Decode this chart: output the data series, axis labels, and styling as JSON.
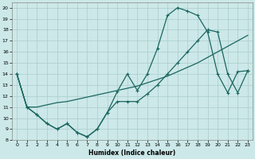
{
  "xlabel": "Humidex (Indice chaleur)",
  "background_color": "#cce8e8",
  "grid_color": "#aacccc",
  "line_color": "#1a6660",
  "xlim": [
    -0.5,
    23.5
  ],
  "ylim": [
    8,
    20.5
  ],
  "yticks": [
    8,
    9,
    10,
    11,
    12,
    13,
    14,
    15,
    16,
    17,
    18,
    19,
    20
  ],
  "xticks": [
    0,
    1,
    2,
    3,
    4,
    5,
    6,
    7,
    8,
    9,
    10,
    11,
    12,
    13,
    14,
    15,
    16,
    17,
    18,
    19,
    20,
    21,
    22,
    23
  ],
  "s1_x": [
    0,
    1,
    2,
    3,
    4,
    5,
    6,
    7,
    8,
    9,
    10,
    11,
    12,
    13,
    14,
    15,
    16,
    17,
    18,
    19,
    20,
    21,
    22,
    23
  ],
  "s1_y": [
    14.0,
    11.0,
    10.3,
    9.5,
    9.0,
    9.5,
    8.7,
    8.3,
    9.0,
    10.5,
    12.4,
    14.0,
    12.5,
    14.0,
    16.3,
    19.3,
    20.0,
    19.7,
    19.3,
    17.8,
    14.0,
    12.3,
    14.2,
    14.3
  ],
  "s2_x": [
    0,
    1,
    2,
    3,
    4,
    5,
    6,
    7,
    8,
    9,
    10,
    11,
    12,
    13,
    14,
    15,
    16,
    17,
    18,
    19,
    20,
    21,
    22,
    23
  ],
  "s2_y": [
    14.0,
    11.0,
    11.0,
    11.2,
    11.4,
    11.5,
    11.7,
    11.9,
    12.1,
    12.3,
    12.5,
    12.7,
    12.9,
    13.2,
    13.5,
    13.8,
    14.2,
    14.6,
    15.0,
    15.5,
    16.0,
    16.5,
    17.0,
    17.5
  ],
  "s3_x": [
    0,
    1,
    2,
    3,
    4,
    5,
    6,
    7,
    8,
    9,
    10,
    11,
    12,
    13,
    14,
    15,
    16,
    17,
    18,
    19,
    20,
    21,
    22,
    23
  ],
  "s3_y": [
    14.0,
    11.0,
    10.3,
    9.5,
    9.0,
    9.5,
    8.7,
    8.3,
    9.0,
    10.5,
    11.5,
    11.5,
    11.5,
    12.2,
    13.0,
    14.0,
    15.0,
    16.0,
    17.0,
    18.0,
    17.8,
    14.0,
    12.3,
    14.3
  ]
}
